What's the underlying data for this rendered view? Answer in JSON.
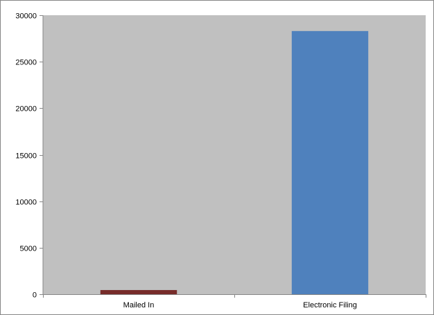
{
  "colors": {
    "plot_area": "#C0C0C0",
    "axis": "#868686",
    "mailed_in": "#772C2A",
    "electronic_filing": "#4F81BD"
  },
  "chart_data": {
    "type": "bar",
    "title": "",
    "xlabel": "",
    "ylabel": "",
    "categories": [
      "Mailed In",
      "Electronic Filing"
    ],
    "values": [
      450,
      28300
    ],
    "ylim": [
      0,
      30000
    ],
    "yticks": [
      0,
      5000,
      10000,
      15000,
      20000,
      25000,
      30000
    ],
    "grid": false,
    "legend": "none"
  }
}
